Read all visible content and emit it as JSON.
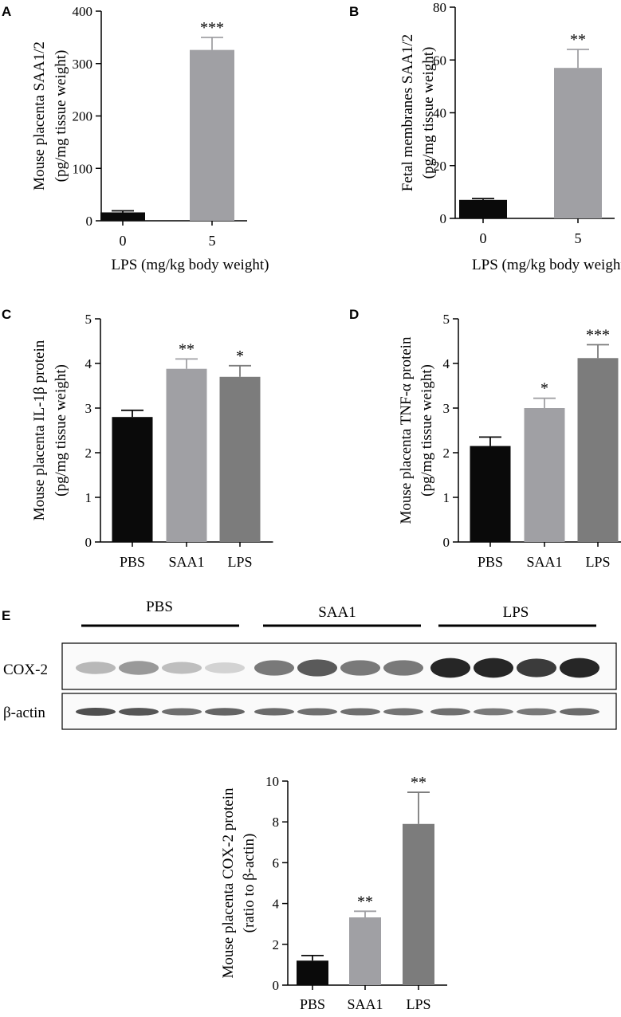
{
  "panels": {
    "A": "A",
    "B": "B",
    "C": "C",
    "D": "D",
    "E": "E"
  },
  "colors": {
    "black": "#0a0a0a",
    "light_gray": "#a0a0a4",
    "mid_gray": "#7c7c7c"
  },
  "chart_data": [
    {
      "panel": "A",
      "type": "bar",
      "categories": [
        "0",
        "5"
      ],
      "values": [
        16,
        326
      ],
      "errors": [
        3,
        24
      ],
      "colors": [
        "#0a0a0a",
        "#a0a0a4"
      ],
      "significance": [
        "",
        "***"
      ],
      "ylim": [
        0,
        400
      ],
      "yticks": [
        0,
        100,
        200,
        300,
        400
      ],
      "ylabel": [
        "Mouse placenta SAA1/2",
        "(pg/mg tissue weight)"
      ],
      "xlabel": "LPS (mg/kg body weight)"
    },
    {
      "panel": "B",
      "type": "bar",
      "categories": [
        "0",
        "5"
      ],
      "values": [
        7,
        57
      ],
      "errors": [
        0.5,
        7
      ],
      "colors": [
        "#0a0a0a",
        "#a0a0a4"
      ],
      "significance": [
        "",
        "**"
      ],
      "ylim": [
        0,
        80
      ],
      "yticks": [
        0,
        20,
        40,
        60,
        80
      ],
      "ylabel": [
        "Fetal membranes SAA1/2",
        "(pg/mg tissue weight)"
      ],
      "xlabel": "LPS (mg/kg body weight)"
    },
    {
      "panel": "C",
      "type": "bar",
      "categories": [
        "PBS",
        "SAA1",
        "LPS"
      ],
      "values": [
        2.8,
        3.88,
        3.7
      ],
      "errors": [
        0.15,
        0.22,
        0.25
      ],
      "colors": [
        "#0a0a0a",
        "#a0a0a4",
        "#7c7c7c"
      ],
      "significance": [
        "",
        "**",
        "*"
      ],
      "ylim": [
        0,
        5
      ],
      "yticks": [
        0,
        1,
        2,
        3,
        4,
        5
      ],
      "ylabel": [
        "Mouse placenta IL-1β protein",
        "(pg/mg tissue weight)"
      ],
      "xlabel": ""
    },
    {
      "panel": "D",
      "type": "bar",
      "categories": [
        "PBS",
        "SAA1",
        "LPS"
      ],
      "values": [
        2.15,
        3.0,
        4.12
      ],
      "errors": [
        0.2,
        0.22,
        0.3
      ],
      "colors": [
        "#0a0a0a",
        "#a0a0a4",
        "#7c7c7c"
      ],
      "significance": [
        "",
        "*",
        "***"
      ],
      "ylim": [
        0,
        5
      ],
      "yticks": [
        0,
        1,
        2,
        3,
        4,
        5
      ],
      "ylabel": [
        "Mouse placenta TNF-α protein",
        "(pg/mg tissue weight)"
      ],
      "xlabel": ""
    },
    {
      "panel": "E",
      "type": "bar",
      "categories": [
        "PBS",
        "SAA1",
        "LPS"
      ],
      "values": [
        1.2,
        3.32,
        7.9
      ],
      "errors": [
        0.25,
        0.3,
        1.55
      ],
      "colors": [
        "#0a0a0a",
        "#a0a0a4",
        "#7c7c7c"
      ],
      "significance": [
        "",
        "**",
        "**"
      ],
      "ylim": [
        0,
        10
      ],
      "yticks": [
        0,
        2,
        4,
        6,
        8,
        10
      ],
      "ylabel": [
        "Mouse placenta COX-2 protein",
        "(ratio to β-actin)"
      ],
      "xlabel": ""
    }
  ],
  "blot": {
    "groups": [
      "PBS",
      "SAA1",
      "LPS"
    ],
    "rows": [
      {
        "label": "COX-2",
        "intensities": [
          0.25,
          0.4,
          0.22,
          0.12,
          0.55,
          0.7,
          0.55,
          0.55,
          0.95,
          0.95,
          0.85,
          0.95
        ]
      },
      {
        "label": "β-actin",
        "intensities": [
          0.75,
          0.72,
          0.6,
          0.65,
          0.62,
          0.6,
          0.6,
          0.58,
          0.6,
          0.55,
          0.55,
          0.62
        ]
      }
    ]
  }
}
